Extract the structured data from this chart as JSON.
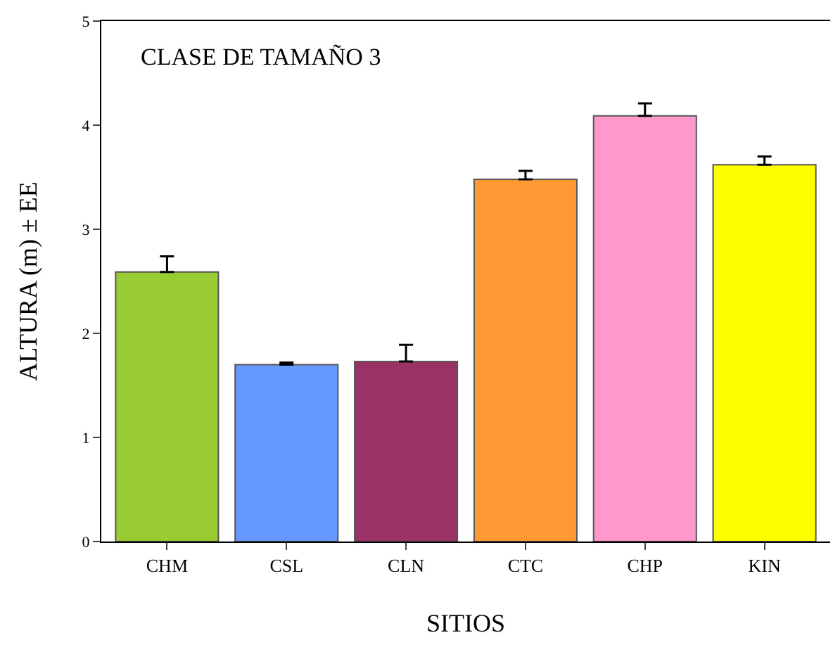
{
  "chart_data": {
    "type": "bar",
    "xlabel": "SITIOS",
    "ylabel": "ALTURA (m) ± EE",
    "annotations": [
      "CLASE DE TAMAÑO 3"
    ],
    "categories": [
      "CHM",
      "CSL",
      "CLN",
      "CTC",
      "CHP",
      "KIN"
    ],
    "values": [
      2.59,
      1.7,
      1.73,
      3.48,
      4.09,
      3.62
    ],
    "colors": [
      "#99cc33",
      "#6699ff",
      "#993366",
      "#ff9933",
      "#ff99cc",
      "#ffff00"
    ],
    "errors": [
      [
        2.59,
        2.74
      ],
      [
        1.7,
        1.72
      ],
      [
        1.73,
        1.89
      ],
      [
        3.48,
        3.56
      ],
      [
        4.09,
        4.21
      ],
      [
        3.62,
        3.7
      ]
    ],
    "ylim": [
      0,
      5
    ],
    "yticks": [
      0,
      1,
      2,
      3,
      4,
      5
    ],
    "grid": false,
    "legend": false
  }
}
